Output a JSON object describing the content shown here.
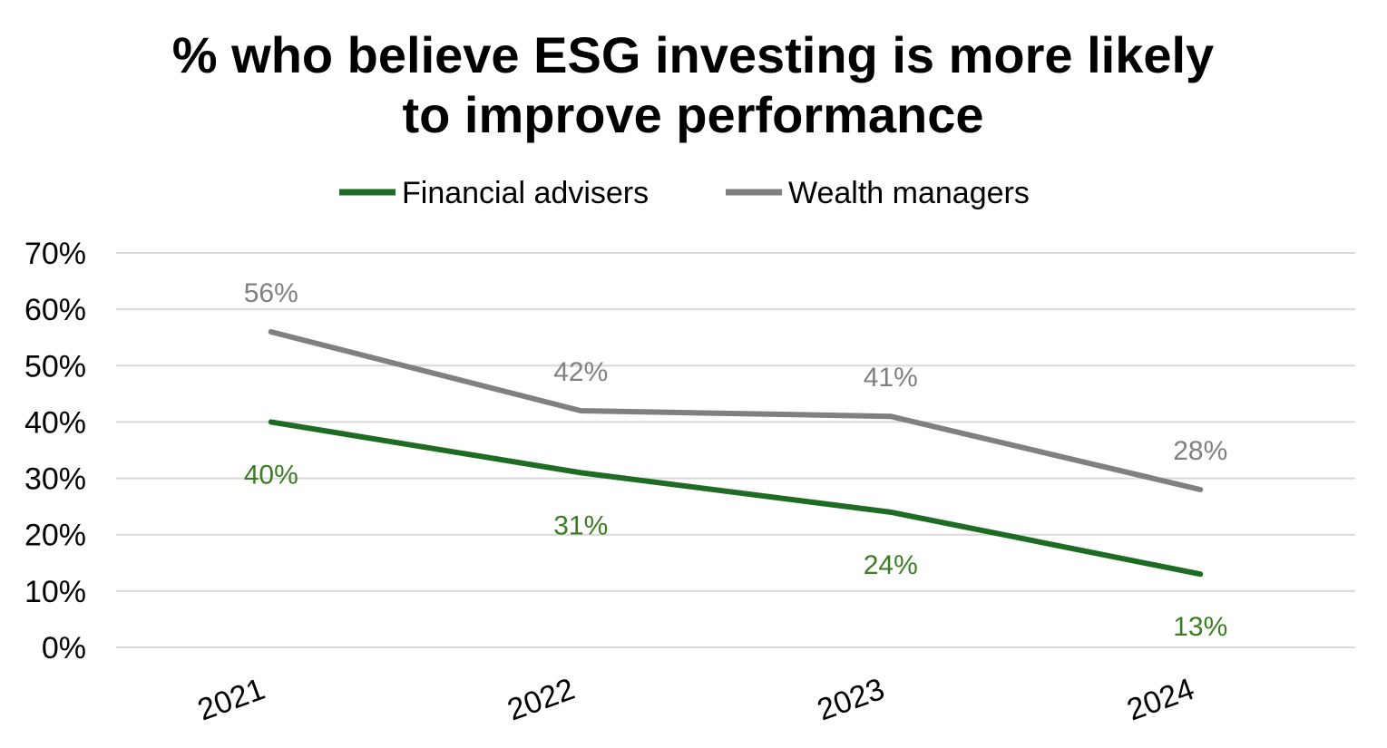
{
  "chart_data": {
    "type": "line",
    "title": [
      "% who believe ESG investing is more likely",
      "to improve performance"
    ],
    "categories": [
      "2021",
      "2022",
      "2023",
      "2024"
    ],
    "series": [
      {
        "name": "Financial advisers",
        "color": "#1e6b23",
        "label_color": "#3a7d22",
        "values": [
          40,
          31,
          24,
          13
        ],
        "labels": [
          "40%",
          "31%",
          "24%",
          "13%"
        ],
        "label_position": "below"
      },
      {
        "name": "Wealth managers",
        "color": "#808080",
        "label_color": "#808080",
        "values": [
          56,
          42,
          41,
          28
        ],
        "labels": [
          "56%",
          "42%",
          "41%",
          "28%"
        ],
        "label_position": "above"
      }
    ],
    "yticks": [
      "0%",
      "10%",
      "20%",
      "30%",
      "40%",
      "50%",
      "60%",
      "70%"
    ],
    "ylim": [
      0,
      70
    ],
    "xlabel": "",
    "ylabel": "",
    "grid": true,
    "legend_position": "top"
  }
}
